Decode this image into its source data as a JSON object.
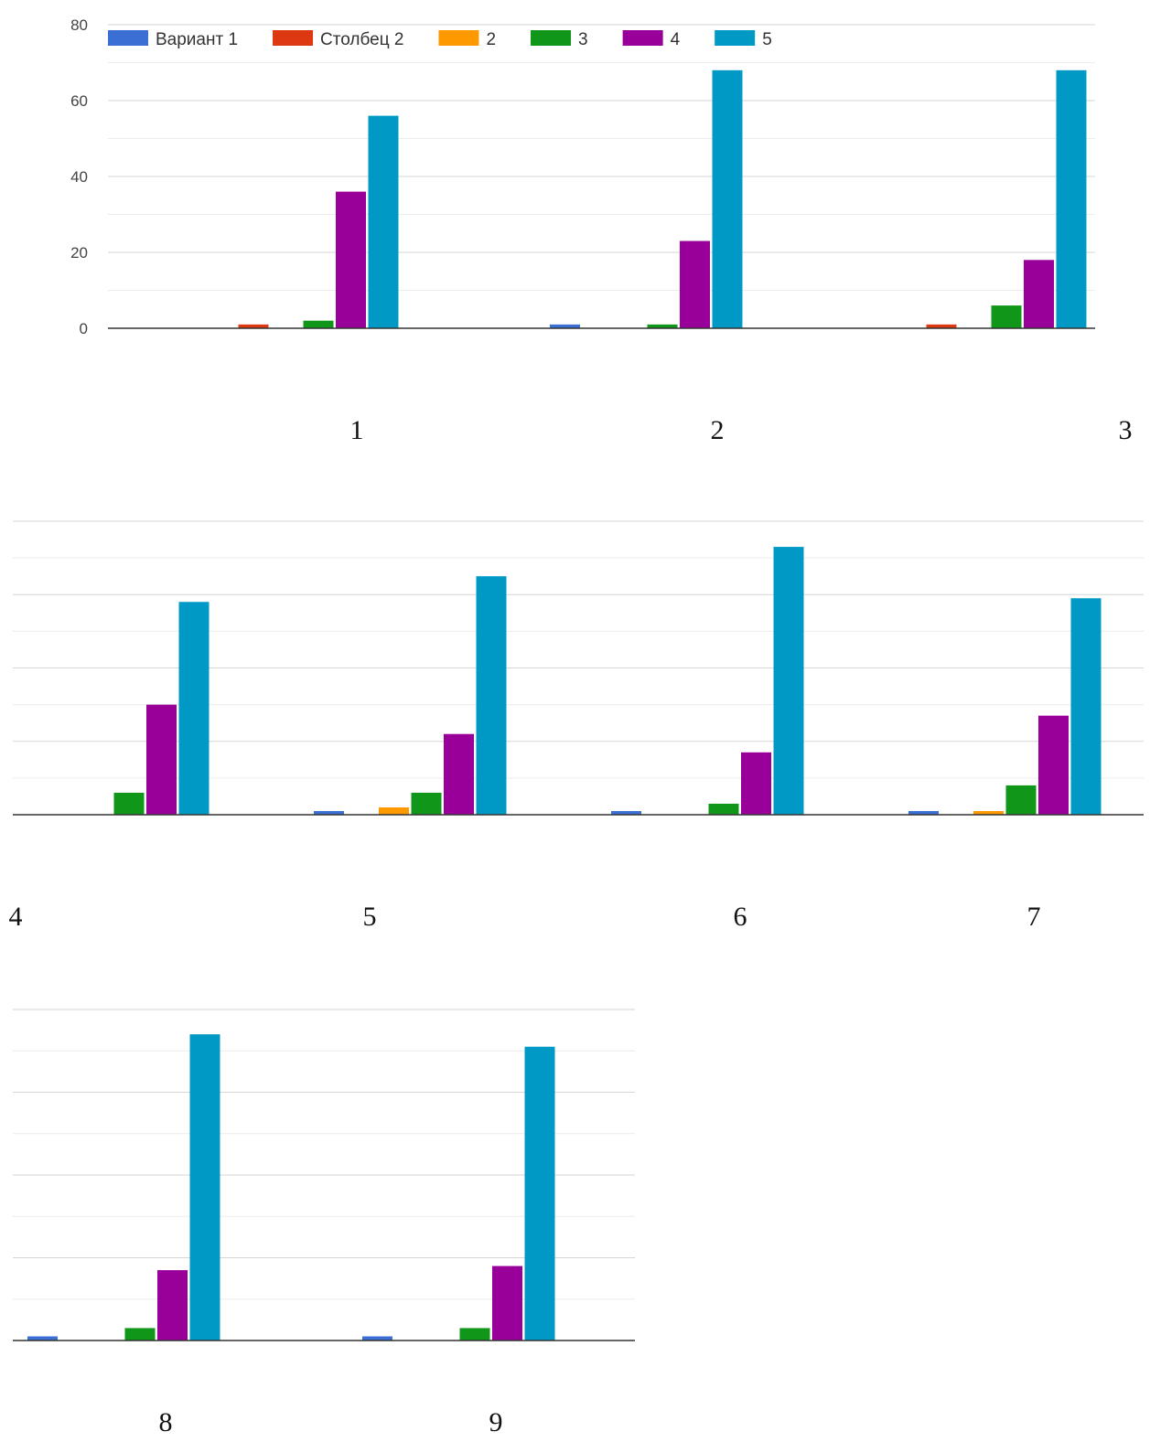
{
  "chart_data": {
    "type": "bar",
    "categories": [
      "1",
      "2",
      "3",
      "4",
      "5",
      "6",
      "7",
      "8",
      "9"
    ],
    "ylim": [
      0,
      80
    ],
    "yticks": [
      "0",
      "20",
      "40",
      "60",
      "80"
    ],
    "grid": true,
    "legend_position": "top-left",
    "series": [
      {
        "name": "Вариант 1",
        "color": "#3b6fd4",
        "values": [
          0,
          1,
          0,
          0,
          1,
          1,
          1,
          1,
          1
        ]
      },
      {
        "name": "Столбец 2",
        "color": "#dc3912",
        "values": [
          1,
          0,
          1,
          0,
          0,
          0,
          0,
          0,
          0
        ]
      },
      {
        "name": "2",
        "color": "#ff9900",
        "values": [
          0,
          0,
          0,
          0,
          2,
          0,
          1,
          0,
          0
        ]
      },
      {
        "name": "3",
        "color": "#109618",
        "values": [
          2,
          1,
          6,
          6,
          6,
          3,
          8,
          3,
          3
        ]
      },
      {
        "name": "4",
        "color": "#990099",
        "values": [
          36,
          23,
          18,
          30,
          22,
          17,
          27,
          17,
          18
        ]
      },
      {
        "name": "5",
        "color": "#0099c6",
        "values": [
          56,
          68,
          68,
          58,
          65,
          73,
          59,
          74,
          71
        ]
      }
    ]
  }
}
